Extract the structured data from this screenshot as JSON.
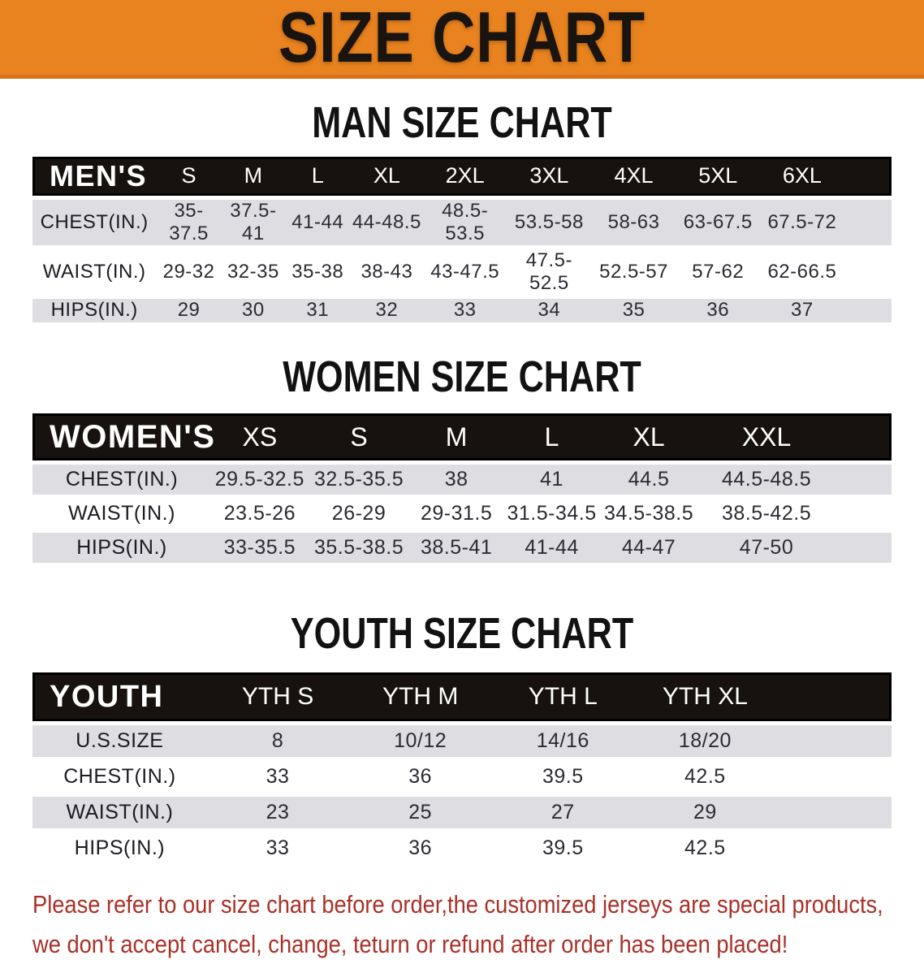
{
  "banner": {
    "title": "SIZE CHART"
  },
  "colors": {
    "banner_bg": "#E8831F",
    "banner_edge": "#D8721B",
    "header_bg": "#17120F",
    "row_gray": "#DEDDE1",
    "disclaimer_red": "#A93128"
  },
  "sections": [
    {
      "heading": "MAN SIZE CHART",
      "table": {
        "header": [
          "MEN'S",
          "S",
          "M",
          "L",
          "XL",
          "2XL",
          "3XL",
          "4XL",
          "5XL",
          "6XL"
        ],
        "rows": [
          {
            "label": "CHEST(IN.)",
            "values": [
              "35-37.5",
              "37.5-41",
              "41-44",
              "44-48.5",
              "48.5-53.5",
              "53.5-58",
              "58-63",
              "63-67.5",
              "67.5-72"
            ]
          },
          {
            "label": "WAIST(IN.)",
            "values": [
              "29-32",
              "32-35",
              "35-38",
              "38-43",
              "43-47.5",
              "47.5-52.5",
              "52.5-57",
              "57-62",
              "62-66.5"
            ]
          },
          {
            "label": "HIPS(IN.)",
            "values": [
              "29",
              "30",
              "31",
              "32",
              "33",
              "34",
              "35",
              "36",
              "37"
            ]
          }
        ]
      }
    },
    {
      "heading": "WOMEN SIZE CHART",
      "table": {
        "header": [
          "WOMEN'S",
          "XS",
          "S",
          "M",
          "L",
          "XL",
          "XXL"
        ],
        "rows": [
          {
            "label": "CHEST(IN.)",
            "values": [
              "29.5-32.5",
              "32.5-35.5",
              "38",
              "41",
              "44.5",
              "44.5-48.5"
            ]
          },
          {
            "label": "WAIST(IN.)",
            "values": [
              "23.5-26",
              "26-29",
              "29-31.5",
              "31.5-34.5",
              "34.5-38.5",
              "38.5-42.5"
            ]
          },
          {
            "label": "HIPS(IN.)",
            "values": [
              "33-35.5",
              "35.5-38.5",
              "38.5-41",
              "41-44",
              "44-47",
              "47-50"
            ]
          }
        ]
      }
    },
    {
      "heading": "YOUTH SIZE CHART",
      "table": {
        "header": [
          "YOUTH",
          "YTH S",
          "YTH M",
          "YTH L",
          "YTH XL"
        ],
        "rows": [
          {
            "label": "U.S.SIZE",
            "values": [
              "8",
              "10/12",
              "14/16",
              "18/20"
            ]
          },
          {
            "label": "CHEST(IN.)",
            "values": [
              "33",
              "36",
              "39.5",
              "42.5"
            ]
          },
          {
            "label": "WAIST(IN.)",
            "values": [
              "23",
              "25",
              "27",
              "29"
            ]
          },
          {
            "label": "HIPS(IN.)",
            "values": [
              "33",
              "36",
              "39.5",
              "42.5"
            ]
          }
        ]
      }
    }
  ],
  "disclaimer": {
    "line1": "Please refer to our size chart before order,the customized jerseys are special products,",
    "line2": "we don't accept cancel, change, teturn or refund after order has been placed!"
  }
}
